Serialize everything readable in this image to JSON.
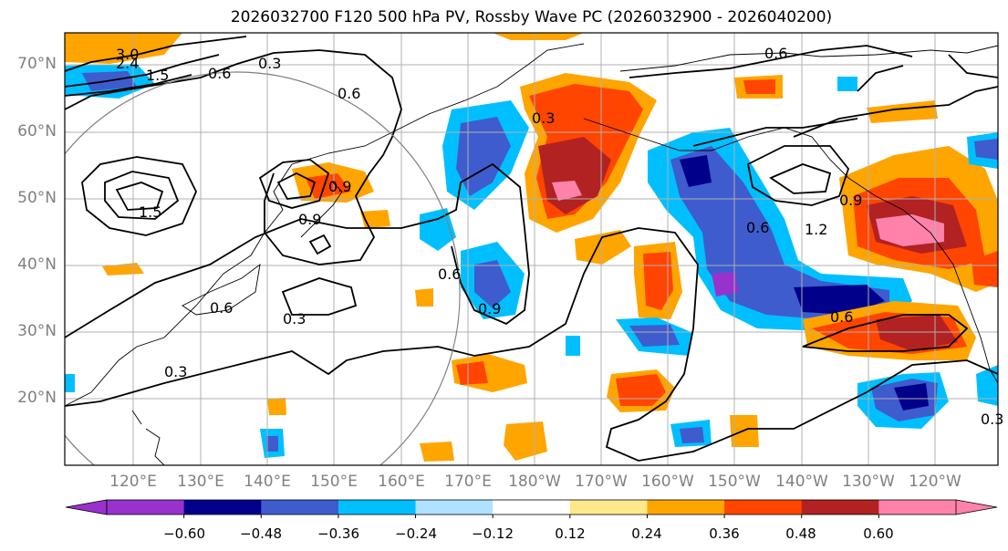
{
  "title": "2026032700 F120 500 hPa PV, Rossby Wave PC (2026032900 - 2026040200)",
  "lat_labels": [
    "70°N",
    "60°N",
    "50°N",
    "40°N",
    "30°N",
    "20°N"
  ],
  "lon_labels": [
    "120°E",
    "130°E",
    "140°E",
    "150°E",
    "160°E",
    "170°E",
    "180°W",
    "170°W",
    "160°W",
    "150°W",
    "140°W",
    "130°W",
    "120°W"
  ],
  "colorbar": {
    "labels": [
      "−0.60",
      "−0.48",
      "−0.36",
      "−0.24",
      "−0.12",
      "0.12",
      "0.24",
      "0.36",
      "0.48",
      "0.60"
    ],
    "colors": [
      "#9932cc",
      "#00008b",
      "#3e5ccd",
      "#00bfff",
      "#b0e2ff",
      "#ffffff",
      "#ffe98a",
      "#ffa500",
      "#ff4500",
      "#b22222",
      "#ff82ab"
    ]
  },
  "contour_labels": [
    "0.3",
    "0.6",
    "0.9",
    "1.2",
    "1.5",
    "2.4",
    "3.0"
  ]
}
